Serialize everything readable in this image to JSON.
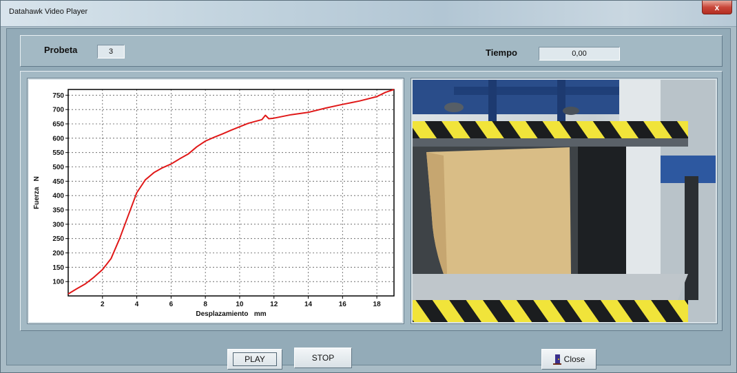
{
  "window": {
    "title": "Datahawk Video Player",
    "close_glyph": "x"
  },
  "info": {
    "probeta_label": "Probeta",
    "probeta_value": "3",
    "tiempo_label": "Tiempo",
    "tiempo_value": "0,00"
  },
  "buttons": {
    "play": "PLAY",
    "stop": "STOP",
    "close": "Close"
  },
  "chart_data": {
    "type": "line",
    "xlabel": "Desplazamiento   mm",
    "ylabel": "Fuerza   N",
    "xlim": [
      0,
      19
    ],
    "ylim": [
      50,
      770
    ],
    "x_ticks": [
      2,
      4,
      6,
      8,
      10,
      12,
      14,
      16,
      18
    ],
    "y_ticks": [
      100,
      150,
      200,
      250,
      300,
      350,
      400,
      450,
      500,
      550,
      600,
      650,
      700,
      750
    ],
    "grid": true,
    "series": [
      {
        "color": "#e01818",
        "x": [
          0,
          0.5,
          1,
          1.5,
          2,
          2.5,
          3,
          3.5,
          4,
          4.5,
          5,
          5.5,
          6,
          6.5,
          7,
          7.5,
          8,
          8.5,
          9,
          9.5,
          10,
          10.5,
          11,
          11.3,
          11.5,
          11.7,
          12,
          13,
          14,
          15,
          16,
          17,
          18,
          18.5,
          19
        ],
        "y": [
          57,
          75,
          92,
          115,
          142,
          180,
          250,
          330,
          410,
          455,
          480,
          497,
          510,
          528,
          545,
          570,
          590,
          603,
          615,
          628,
          640,
          652,
          660,
          665,
          680,
          668,
          670,
          682,
          690,
          705,
          718,
          730,
          745,
          760,
          770
        ]
      }
    ]
  }
}
